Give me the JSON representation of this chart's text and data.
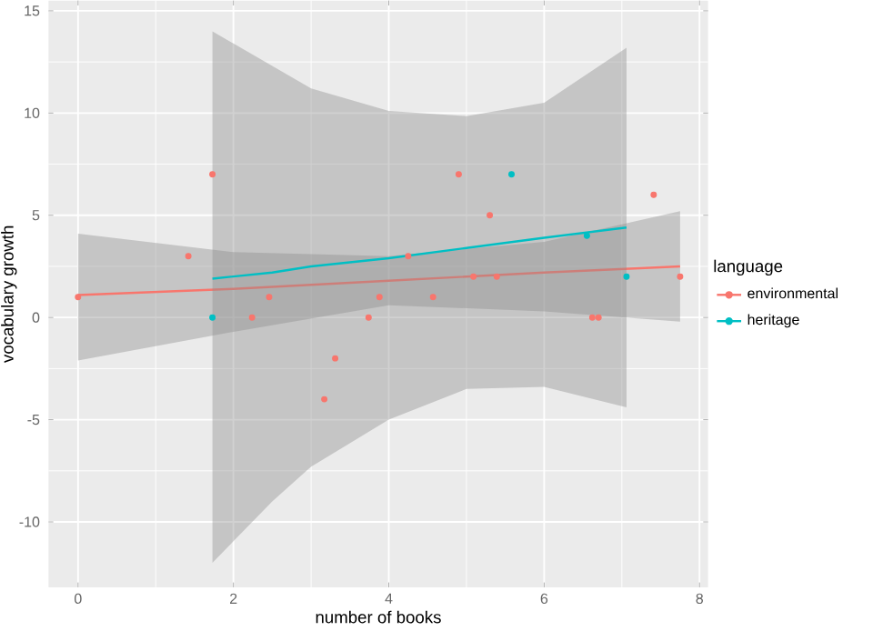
{
  "chart_data": {
    "type": "scatter",
    "xlabel": "number of books",
    "ylabel": "vocabulary growth",
    "legend_title": "language",
    "legend": "right",
    "grid": true,
    "marker": "circle",
    "xlim": [
      -0.38,
      8.11
    ],
    "ylim": [
      -13.2,
      15.5
    ],
    "xticks": [
      0,
      2,
      4,
      6,
      8
    ],
    "yticks": [
      -10,
      -5,
      0,
      5,
      10,
      15
    ],
    "series": [
      {
        "name": "environmental",
        "color": "#f8766d",
        "x": [
          0,
          1.42,
          1.73,
          2.24,
          2.46,
          3.17,
          3.31,
          3.74,
          3.88,
          4.25,
          4.57,
          4.9,
          5.09,
          5.3,
          5.39,
          6.62,
          6.7,
          7.41,
          7.75
        ],
        "values": [
          1,
          3,
          7,
          0,
          1,
          -4,
          -2,
          0,
          1,
          3,
          1,
          7,
          2,
          5,
          2,
          0,
          0,
          6,
          2
        ]
      },
      {
        "name": "heritage",
        "color": "#00bfc4",
        "x": [
          1.73,
          5.58,
          6.55,
          7.06
        ],
        "values": [
          0,
          7,
          4,
          2
        ]
      },
      {
        "type": "line",
        "marker": "none",
        "color": "#f8766d",
        "x": [
          0,
          2,
          4,
          6,
          7.75
        ],
        "values": [
          1.1,
          1.4,
          1.8,
          2.2,
          2.5
        ],
        "lower": [
          -2.1,
          -0.7,
          0.6,
          0.3,
          -0.2
        ],
        "upper": [
          4.1,
          3.2,
          3.0,
          3.7,
          5.2
        ]
      },
      {
        "type": "line",
        "marker": "none",
        "color": "#00bfc4",
        "x": [
          1.73,
          2.5,
          3,
          4,
          5,
          6,
          7.06
        ],
        "values": [
          1.9,
          2.2,
          2.5,
          2.9,
          3.4,
          3.9,
          4.4
        ],
        "lower": [
          -12.0,
          -9.0,
          -7.3,
          -5.0,
          -3.5,
          -3.4,
          -4.4
        ],
        "upper": [
          14.0,
          12.3,
          11.2,
          10.1,
          9.85,
          10.5,
          13.2
        ]
      }
    ]
  }
}
